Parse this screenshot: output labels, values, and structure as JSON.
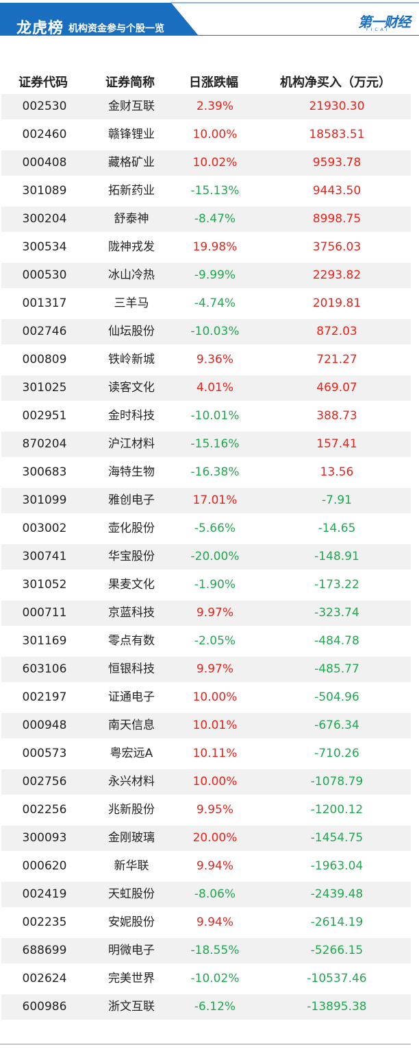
{
  "header": {
    "title": "龙虎榜",
    "subtitle": "机构资金参与个股一览",
    "logo_text": "第一财经",
    "logo_sub": "YICAI",
    "brand_color": "#1a6ec0"
  },
  "columns": [
    "证券代码",
    "证券简称",
    "日涨跌幅",
    "机构净买入（万元）"
  ],
  "colors": {
    "up": "#e8231b",
    "down": "#20a84f",
    "row_alt": "#f1f1f1"
  },
  "rows": [
    {
      "code": "002530",
      "name": "金财互联",
      "change": "2.39%",
      "net": "21930.30"
    },
    {
      "code": "002460",
      "name": "赣锋锂业",
      "change": "10.00%",
      "net": "18583.51"
    },
    {
      "code": "000408",
      "name": "藏格矿业",
      "change": "10.02%",
      "net": "9593.78"
    },
    {
      "code": "301089",
      "name": "拓新药业",
      "change": "-15.13%",
      "net": "9443.50"
    },
    {
      "code": "300204",
      "name": "舒泰神",
      "change": "-8.47%",
      "net": "8998.75"
    },
    {
      "code": "300534",
      "name": "陇神戎发",
      "change": "19.98%",
      "net": "3756.03"
    },
    {
      "code": "000530",
      "name": "冰山冷热",
      "change": "-9.99%",
      "net": "2293.82"
    },
    {
      "code": "001317",
      "name": "三羊马",
      "change": "-4.74%",
      "net": "2019.81"
    },
    {
      "code": "002746",
      "name": "仙坛股份",
      "change": "-10.03%",
      "net": "872.03"
    },
    {
      "code": "000809",
      "name": "铁岭新城",
      "change": "9.36%",
      "net": "721.27"
    },
    {
      "code": "301025",
      "name": "读客文化",
      "change": "4.01%",
      "net": "469.07"
    },
    {
      "code": "002951",
      "name": "金时科技",
      "change": "-10.01%",
      "net": "388.73"
    },
    {
      "code": "870204",
      "name": "沪江材料",
      "change": "-15.16%",
      "net": "157.41"
    },
    {
      "code": "300683",
      "name": "海特生物",
      "change": "-16.38%",
      "net": "13.56"
    },
    {
      "code": "301099",
      "name": "雅创电子",
      "change": "17.01%",
      "net": "-7.91"
    },
    {
      "code": "003002",
      "name": "壶化股份",
      "change": "-5.66%",
      "net": "-14.65"
    },
    {
      "code": "300741",
      "name": "华宝股份",
      "change": "-20.00%",
      "net": "-148.91"
    },
    {
      "code": "301052",
      "name": "果麦文化",
      "change": "-1.90%",
      "net": "-173.22"
    },
    {
      "code": "000711",
      "name": "京蓝科技",
      "change": "9.97%",
      "net": "-323.74"
    },
    {
      "code": "301169",
      "name": "零点有数",
      "change": "-2.05%",
      "net": "-484.78"
    },
    {
      "code": "603106",
      "name": "恒银科技",
      "change": "9.97%",
      "net": "-485.77"
    },
    {
      "code": "002197",
      "name": "证通电子",
      "change": "10.00%",
      "net": "-504.96"
    },
    {
      "code": "000948",
      "name": "南天信息",
      "change": "10.01%",
      "net": "-676.34"
    },
    {
      "code": "000573",
      "name": "粤宏远A",
      "change": "10.11%",
      "net": "-710.26"
    },
    {
      "code": "002756",
      "name": "永兴材料",
      "change": "10.00%",
      "net": "-1078.79"
    },
    {
      "code": "002256",
      "name": "兆新股份",
      "change": "9.95%",
      "net": "-1200.12"
    },
    {
      "code": "300093",
      "name": "金刚玻璃",
      "change": "20.00%",
      "net": "-1454.75"
    },
    {
      "code": "000620",
      "name": "新华联",
      "change": "9.94%",
      "net": "-1963.04"
    },
    {
      "code": "002419",
      "name": "天虹股份",
      "change": "-8.06%",
      "net": "-2439.48"
    },
    {
      "code": "002235",
      "name": "安妮股份",
      "change": "9.94%",
      "net": "-2614.19"
    },
    {
      "code": "688699",
      "name": "明微电子",
      "change": "-18.55%",
      "net": "-5266.15"
    },
    {
      "code": "002624",
      "name": "完美世界",
      "change": "-10.02%",
      "net": "-10537.46"
    },
    {
      "code": "600986",
      "name": "浙文互联",
      "change": "-6.12%",
      "net": "-13895.38"
    }
  ]
}
